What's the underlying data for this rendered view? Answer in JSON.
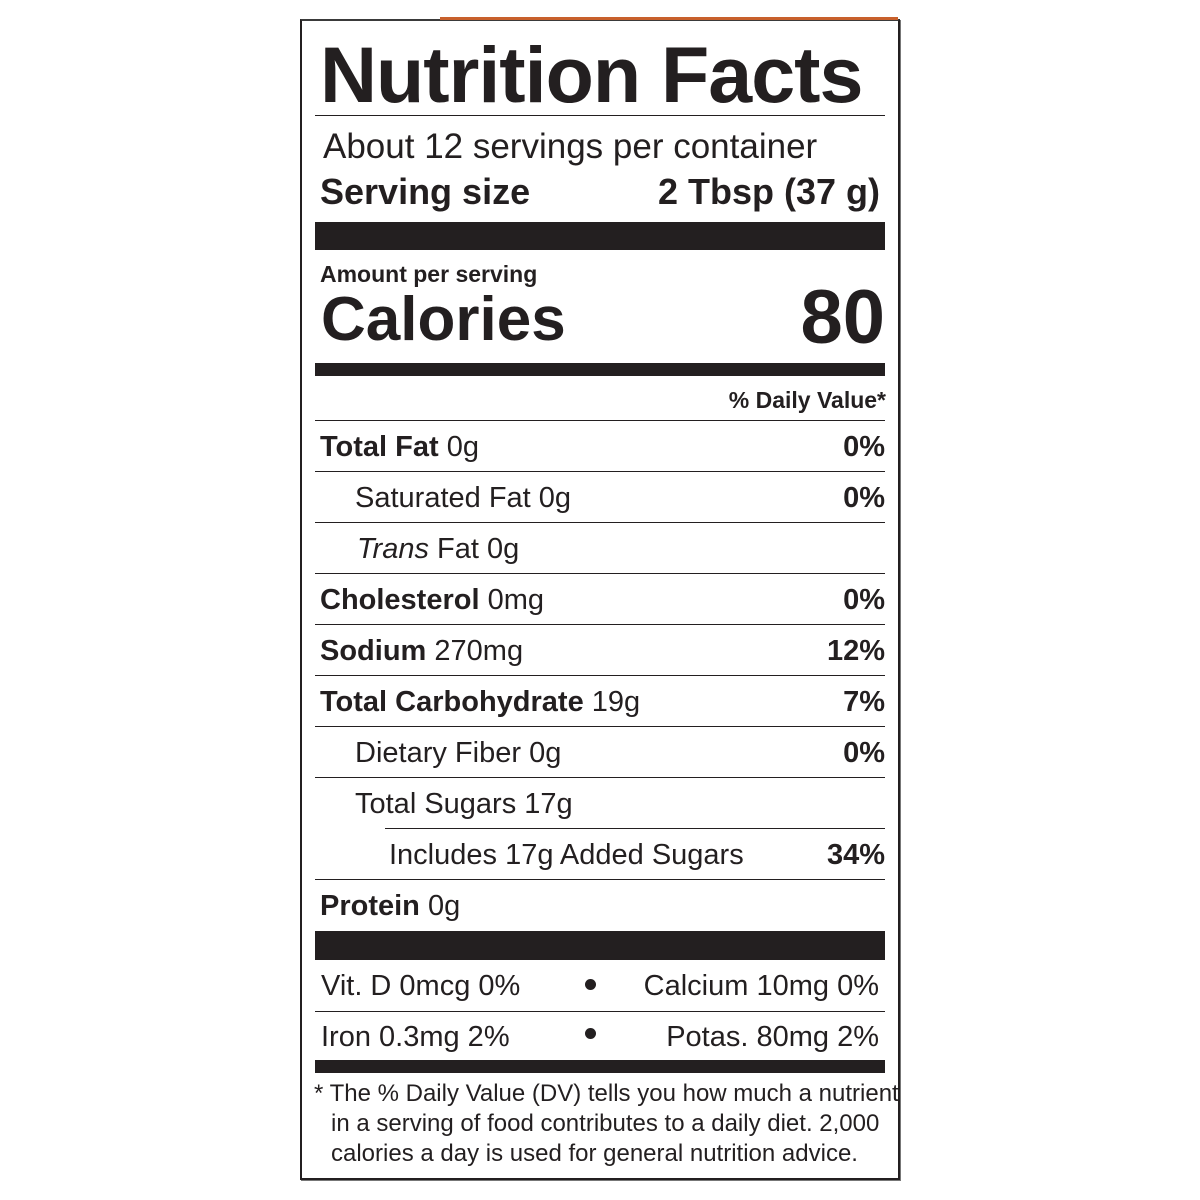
{
  "title": "Nutrition Facts",
  "servings_per_container": "About 12 servings per container",
  "serving_size_label": "Serving size",
  "serving_size_value": "2 Tbsp (37 g)",
  "amount_per_serving": "Amount per serving",
  "calories_label": "Calories",
  "calories_value": "80",
  "daily_value_header": "% Daily Value*",
  "nutrients": [
    {
      "name": "Total Fat",
      "amount": "0g",
      "dv": "0%"
    },
    {
      "name": "Saturated Fat",
      "amount": "0g",
      "dv": "0%"
    },
    {
      "name": "Trans",
      "name_suffix": "Fat",
      "amount": "0g",
      "dv": ""
    },
    {
      "name": "Cholesterol",
      "amount": "0mg",
      "dv": "0%"
    },
    {
      "name": "Sodium",
      "amount": "270mg",
      "dv": "12%"
    },
    {
      "name": "Total Carbohydrate",
      "amount": "19g",
      "dv": "7%"
    },
    {
      "name": "Dietary Fiber",
      "amount": "0g",
      "dv": "0%"
    },
    {
      "name": "Total Sugars",
      "amount": "17g",
      "dv": ""
    },
    {
      "name": "Includes 17g Added Sugars",
      "amount": "",
      "dv": "34%"
    },
    {
      "name": "Protein",
      "amount": "0g",
      "dv": ""
    }
  ],
  "micronutrients": [
    {
      "text": "Vit. D 0mcg 0%"
    },
    {
      "text": "Calcium 10mg 0%"
    },
    {
      "text": "Iron 0.3mg 2%"
    },
    {
      "text": "Potas. 80mg 2%"
    }
  ],
  "footnote": [
    "* The % Daily Value (DV) tells you how much a nutrient",
    "in a serving of food contributes to a daily diet. 2,000",
    "calories a day is used for general nutrition advice."
  ],
  "colors": {
    "ink": "#231f20",
    "accent": "#c8602c"
  }
}
